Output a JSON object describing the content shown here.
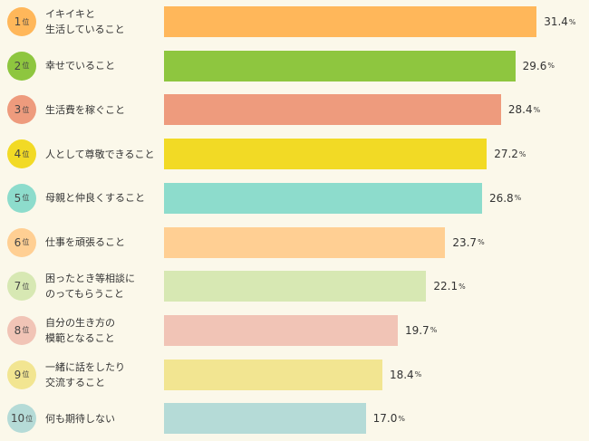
{
  "chart_data": {
    "type": "bar",
    "orientation": "horizontal",
    "rank_suffix": "位",
    "value_suffix": "%",
    "xlim": [
      0,
      33.6
    ],
    "grid": false,
    "categories": [
      {
        "rank": "1",
        "label": "イキイキと\n生活していること",
        "value": 31.4,
        "color": "#ffb75a",
        "badge_color": "#ffb75a"
      },
      {
        "rank": "2",
        "label": "幸せでいること",
        "value": 29.6,
        "color": "#8ec63f",
        "badge_color": "#8ec63f"
      },
      {
        "rank": "3",
        "label": "生活費を稼ぐこと",
        "value": 28.4,
        "color": "#ee9b7d",
        "badge_color": "#ee9b7d"
      },
      {
        "rank": "4",
        "label": "人として尊敬できること",
        "value": 27.2,
        "color": "#f2da25",
        "badge_color": "#f2da25"
      },
      {
        "rank": "5",
        "label": "母親と仲良くすること",
        "value": 26.8,
        "color": "#8ddccc",
        "badge_color": "#8ddccc"
      },
      {
        "rank": "6",
        "label": "仕事を頑張ること",
        "value": 23.7,
        "color": "#ffcf93",
        "badge_color": "#ffcf93"
      },
      {
        "rank": "7",
        "label": "困ったとき等相談に\nのってもらうこと",
        "value": 22.1,
        "color": "#d7e8b3",
        "badge_color": "#d7e8b3"
      },
      {
        "rank": "8",
        "label": "自分の生き方の\n模範となること",
        "value": 19.7,
        "color": "#f1c4b6",
        "badge_color": "#f1c4b6"
      },
      {
        "rank": "9",
        "label": "一緒に話をしたり\n交流すること",
        "value": 18.4,
        "color": "#f2e591",
        "badge_color": "#f2e591"
      },
      {
        "rank": "10",
        "label": "何も期待しない",
        "value": 17.0,
        "color": "#b5dbd7",
        "badge_color": "#b5dbd7"
      }
    ]
  }
}
